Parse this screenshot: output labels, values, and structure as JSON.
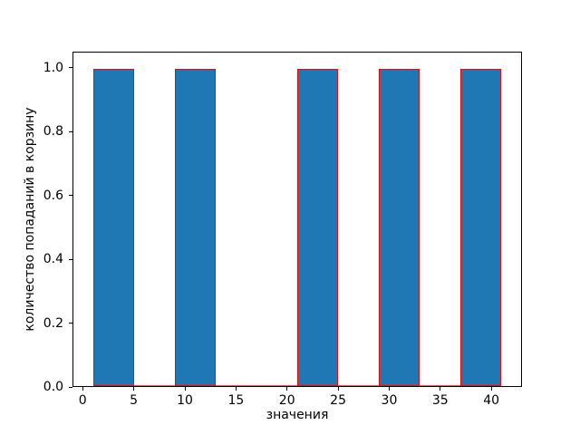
{
  "chart_data": {
    "type": "bar",
    "subtype": "histogram",
    "title": "",
    "xlabel": "значения",
    "ylabel": "количество попаданий в корзину",
    "xlim": [
      -1,
      43
    ],
    "ylim": [
      0,
      1.05
    ],
    "grid": false,
    "legend": false,
    "xticks": [
      {
        "v": 0,
        "label": "0"
      },
      {
        "v": 5,
        "label": "5"
      },
      {
        "v": 10,
        "label": "10"
      },
      {
        "v": 15,
        "label": "15"
      },
      {
        "v": 20,
        "label": "20"
      },
      {
        "v": 25,
        "label": "25"
      },
      {
        "v": 30,
        "label": "30"
      },
      {
        "v": 35,
        "label": "35"
      },
      {
        "v": 40,
        "label": "40"
      }
    ],
    "yticks": [
      {
        "v": 0.0,
        "label": "0.0"
      },
      {
        "v": 0.2,
        "label": "0.2"
      },
      {
        "v": 0.4,
        "label": "0.4"
      },
      {
        "v": 0.6,
        "label": "0.6"
      },
      {
        "v": 0.8,
        "label": "0.8"
      },
      {
        "v": 1.0,
        "label": "1.0"
      }
    ],
    "bins": {
      "edges": [
        1,
        5,
        9,
        13,
        17,
        21,
        25,
        29,
        33,
        37,
        41
      ],
      "counts": [
        1,
        0,
        1,
        0,
        0,
        1,
        0,
        1,
        0,
        1
      ]
    },
    "colors": {
      "bar_fill": "#1f77b4",
      "bar_edge": "#ff0000",
      "axis": "#000000",
      "background": "#ffffff"
    }
  }
}
